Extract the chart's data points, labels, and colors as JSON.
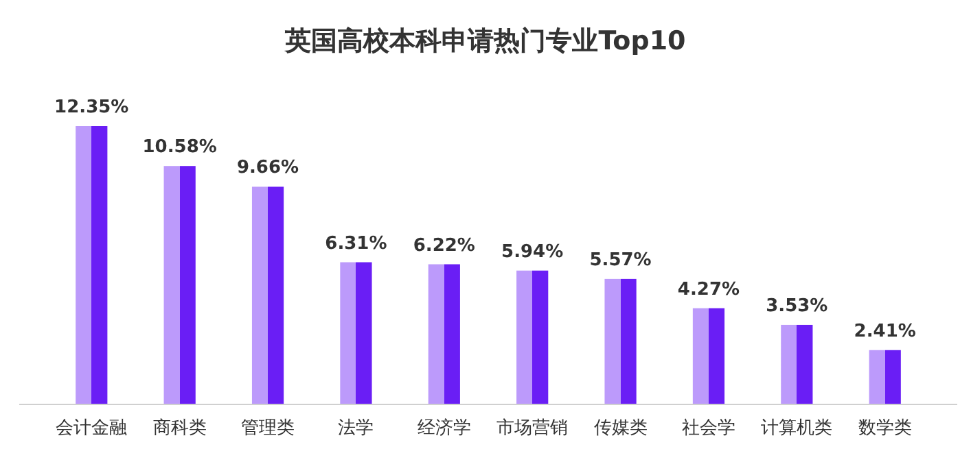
{
  "chart_data": {
    "type": "bar",
    "title": "英国高校本科申请热门专业Top10",
    "categories": [
      "会计金融",
      "商科类",
      "管理类",
      "法学",
      "经济学",
      "市场营销",
      "传媒类",
      "社会学",
      "计算机类",
      "数学类"
    ],
    "values": [
      12.35,
      10.58,
      9.66,
      6.31,
      6.22,
      5.94,
      5.57,
      4.27,
      3.53,
      2.41
    ],
    "value_labels": [
      "12.35%",
      "10.58%",
      "9.66%",
      "6.31%",
      "6.22%",
      "5.94%",
      "5.57%",
      "4.27%",
      "3.53%",
      "2.41%"
    ],
    "color": "#6a1ef5"
  }
}
